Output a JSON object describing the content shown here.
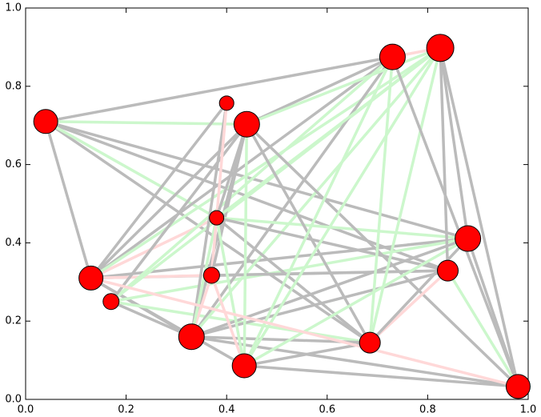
{
  "chart_data": {
    "type": "network",
    "x": [
      0.04,
      0.13,
      0.17,
      0.33,
      0.37,
      0.38,
      0.4,
      0.44,
      0.435,
      0.685,
      0.73,
      0.825,
      0.88,
      0.84,
      0.98
    ],
    "y": [
      0.71,
      0.31,
      0.25,
      0.16,
      0.317,
      0.464,
      0.757,
      0.703,
      0.086,
      0.145,
      0.875,
      0.898,
      0.411,
      0.329,
      0.033
    ],
    "sizes": [
      15,
      15,
      10,
      16,
      10,
      9,
      9,
      16,
      15,
      13,
      16,
      17,
      16,
      13,
      15
    ],
    "node_color": "#ff0000",
    "edges": [
      {
        "source": 0,
        "target": 10,
        "color": "#bbbbbb"
      },
      {
        "source": 0,
        "target": 1,
        "color": "#bbbbbb"
      },
      {
        "source": 0,
        "target": 12,
        "color": "#bbbbbb"
      },
      {
        "source": 0,
        "target": 13,
        "color": "#bbbbbb"
      },
      {
        "source": 0,
        "target": 9,
        "color": "#bbbbbb"
      },
      {
        "source": 0,
        "target": 7,
        "color": "#ccf7cc"
      },
      {
        "source": 0,
        "target": 5,
        "color": "#ccf7cc"
      },
      {
        "source": 1,
        "target": 10,
        "color": "#bbbbbb"
      },
      {
        "source": 1,
        "target": 6,
        "color": "#bbbbbb"
      },
      {
        "source": 1,
        "target": 7,
        "color": "#bbbbbb"
      },
      {
        "source": 1,
        "target": 13,
        "color": "#bbbbbb"
      },
      {
        "source": 1,
        "target": 12,
        "color": "#bbbbbb"
      },
      {
        "source": 1,
        "target": 3,
        "color": "#bbbbbb"
      },
      {
        "source": 1,
        "target": 8,
        "color": "#bbbbbb"
      },
      {
        "source": 1,
        "target": 4,
        "color": "#ffd8d8"
      },
      {
        "source": 1,
        "target": 5,
        "color": "#ffd8d8"
      },
      {
        "source": 1,
        "target": 11,
        "color": "#ccf7cc"
      },
      {
        "source": 2,
        "target": 11,
        "color": "#ccf7cc"
      },
      {
        "source": 2,
        "target": 10,
        "color": "#ccf7cc"
      },
      {
        "source": 2,
        "target": 12,
        "color": "#ccf7cc"
      },
      {
        "source": 2,
        "target": 9,
        "color": "#ccf7cc"
      },
      {
        "source": 2,
        "target": 3,
        "color": "#bbbbbb"
      },
      {
        "source": 2,
        "target": 7,
        "color": "#bbbbbb"
      },
      {
        "source": 3,
        "target": 6,
        "color": "#bbbbbb"
      },
      {
        "source": 3,
        "target": 7,
        "color": "#bbbbbb"
      },
      {
        "source": 3,
        "target": 10,
        "color": "#bbbbbb"
      },
      {
        "source": 3,
        "target": 11,
        "color": "#ccf7cc"
      },
      {
        "source": 3,
        "target": 12,
        "color": "#bbbbbb"
      },
      {
        "source": 3,
        "target": 13,
        "color": "#bbbbbb"
      },
      {
        "source": 3,
        "target": 9,
        "color": "#bbbbbb"
      },
      {
        "source": 3,
        "target": 4,
        "color": "#ffd8d8"
      },
      {
        "source": 3,
        "target": 5,
        "color": "#ccf7cc"
      },
      {
        "source": 3,
        "target": 14,
        "color": "#bbbbbb"
      },
      {
        "source": 4,
        "target": 6,
        "color": "#ffd8d8"
      },
      {
        "source": 4,
        "target": 7,
        "color": "#bbbbbb"
      },
      {
        "source": 4,
        "target": 13,
        "color": "#bbbbbb"
      },
      {
        "source": 4,
        "target": 8,
        "color": "#ffd8d8"
      },
      {
        "source": 5,
        "target": 12,
        "color": "#ccf7cc"
      },
      {
        "source": 5,
        "target": 13,
        "color": "#bbbbbb"
      },
      {
        "source": 5,
        "target": 9,
        "color": "#bbbbbb"
      },
      {
        "source": 5,
        "target": 11,
        "color": "#ccf7cc"
      },
      {
        "source": 5,
        "target": 7,
        "color": "#bbbbbb"
      },
      {
        "source": 5,
        "target": 8,
        "color": "#ccf7cc"
      },
      {
        "source": 7,
        "target": 10,
        "color": "#bbbbbb"
      },
      {
        "source": 7,
        "target": 11,
        "color": "#ccf7cc"
      },
      {
        "source": 7,
        "target": 8,
        "color": "#ccf7cc"
      },
      {
        "source": 7,
        "target": 14,
        "color": "#bbbbbb"
      },
      {
        "source": 7,
        "target": 9,
        "color": "#bbbbbb"
      },
      {
        "source": 8,
        "target": 10,
        "color": "#ccf7cc"
      },
      {
        "source": 8,
        "target": 11,
        "color": "#ccf7cc"
      },
      {
        "source": 8,
        "target": 12,
        "color": "#ccf7cc"
      },
      {
        "source": 8,
        "target": 14,
        "color": "#bbbbbb"
      },
      {
        "source": 8,
        "target": 9,
        "color": "#bbbbbb"
      },
      {
        "source": 9,
        "target": 10,
        "color": "#ccf7cc"
      },
      {
        "source": 9,
        "target": 13,
        "color": "#ffd8d8"
      },
      {
        "source": 9,
        "target": 12,
        "color": "#bbbbbb"
      },
      {
        "source": 9,
        "target": 11,
        "color": "#ccf7cc"
      },
      {
        "source": 10,
        "target": 11,
        "color": "#ffd8d8"
      },
      {
        "source": 10,
        "target": 14,
        "color": "#bbbbbb"
      },
      {
        "source": 11,
        "target": 12,
        "color": "#bbbbbb"
      },
      {
        "source": 11,
        "target": 14,
        "color": "#bbbbbb"
      },
      {
        "source": 11,
        "target": 13,
        "color": "#bbbbbb"
      },
      {
        "source": 12,
        "target": 14,
        "color": "#bbbbbb"
      },
      {
        "source": 13,
        "target": 14,
        "color": "#ccf7cc"
      },
      {
        "source": 1,
        "target": 14,
        "color": "#ffd8d8"
      }
    ],
    "xlim": [
      0,
      1
    ],
    "ylim": [
      0,
      1
    ],
    "xticks": [
      {
        "value": 0,
        "label": "0.0"
      },
      0.2,
      0.4,
      0.6,
      0.8,
      {
        "value": 1,
        "label": "1.0"
      }
    ],
    "yticks": [
      {
        "value": 0,
        "label": "0.0"
      },
      0.2,
      0.4,
      0.6,
      0.8,
      {
        "value": 1,
        "label": "1.0"
      }
    ]
  }
}
